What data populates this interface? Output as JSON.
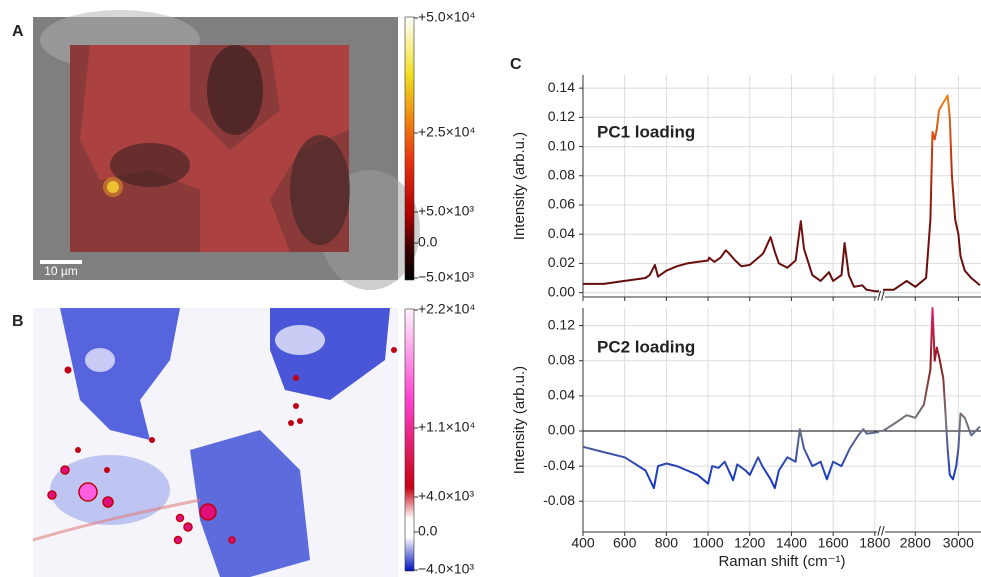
{
  "panel_a": {
    "label": "A",
    "scale_bar": "10 µm",
    "colorbar_ticks": [
      "+5.0×10⁴",
      "+2.5×10⁴",
      "+5.0×10³",
      "0.0",
      "−5.0×10³"
    ]
  },
  "panel_b": {
    "label": "B",
    "colorbar_ticks": [
      "+2.2×10⁴",
      "+1.1×10⁴",
      "+4.0×10³",
      "0.0",
      "−4.0×10³"
    ]
  },
  "panel_c": {
    "label": "C",
    "x_label": "Raman shift (cm⁻¹)"
  },
  "chart_data": [
    {
      "type": "line",
      "annotation": "PC1 loading",
      "y_label": "Intensity (arb.u.)",
      "colors": [
        "#5c0a0a",
        "#7a1010",
        "#d03a10",
        "#f5a020"
      ],
      "grid": true,
      "x_segments": [
        [
          400,
          1820
        ],
        [
          2650,
          3105
        ]
      ],
      "x": [
        400,
        500,
        600,
        700,
        720,
        745,
        760,
        800,
        850,
        900,
        950,
        1000,
        1005,
        1030,
        1060,
        1085,
        1100,
        1130,
        1160,
        1200,
        1250,
        1265,
        1300,
        1320,
        1340,
        1380,
        1420,
        1445,
        1460,
        1500,
        1540,
        1580,
        1600,
        1640,
        1655,
        1675,
        1700,
        1740,
        1760,
        1800,
        1820,
        null,
        2650,
        2700,
        2760,
        2800,
        2850,
        2870,
        2880,
        2890,
        2900,
        2910,
        2930,
        2950,
        2960,
        2970,
        2985,
        3000,
        3010,
        3030,
        3060,
        3100
      ],
      "values": [
        0.006,
        0.006,
        0.008,
        0.01,
        0.012,
        0.019,
        0.011,
        0.015,
        0.018,
        0.02,
        0.021,
        0.022,
        0.024,
        0.021,
        0.024,
        0.029,
        0.027,
        0.022,
        0.018,
        0.019,
        0.025,
        0.027,
        0.038,
        0.028,
        0.02,
        0.017,
        0.022,
        0.049,
        0.03,
        0.012,
        0.008,
        0.014,
        0.008,
        0.012,
        0.034,
        0.012,
        0.004,
        0.005,
        0.002,
        0.001,
        0.001,
        null,
        0.002,
        0.002,
        0.008,
        0.004,
        0.01,
        0.05,
        0.11,
        0.105,
        0.112,
        0.125,
        0.13,
        0.135,
        0.12,
        0.08,
        0.05,
        0.04,
        0.025,
        0.015,
        0.01,
        0.005
      ],
      "ylim": [
        -0.003,
        0.149
      ],
      "yticks": [
        {
          "value": 0,
          "label": "0.00"
        },
        {
          "value": 0.02,
          "label": "0.02"
        },
        {
          "value": 0.04,
          "label": "0.04"
        },
        {
          "value": 0.06,
          "label": "0.06"
        },
        {
          "value": 0.08,
          "label": "0.08"
        },
        {
          "value": 0.1,
          "label": "0.10"
        },
        {
          "value": 0.12,
          "label": "0.12"
        },
        {
          "value": 0.14,
          "label": "0.14"
        }
      ],
      "xticks": [
        400,
        600,
        800,
        1000,
        1200,
        1400,
        1600,
        1800,
        2800,
        3000
      ]
    },
    {
      "type": "line",
      "annotation": "PC2 loading",
      "y_label": "Intensity (arb.u.)",
      "colors": [
        "#1020a0",
        "#1a3ac0",
        "#777777",
        "#8b1a1a",
        "#e0206a"
      ],
      "grid": true,
      "x_segments": [
        [
          400,
          1820
        ],
        [
          2650,
          3105
        ]
      ],
      "x": [
        400,
        500,
        600,
        700,
        740,
        760,
        800,
        850,
        900,
        950,
        1000,
        1020,
        1050,
        1080,
        1120,
        1140,
        1180,
        1200,
        1240,
        1260,
        1300,
        1320,
        1340,
        1380,
        1420,
        1440,
        1460,
        1500,
        1540,
        1570,
        1600,
        1640,
        1660,
        1680,
        1720,
        1745,
        1760,
        1800,
        1820,
        null,
        2650,
        2700,
        2760,
        2800,
        2840,
        2870,
        2880,
        2890,
        2900,
        2910,
        2930,
        2940,
        2950,
        2960,
        2975,
        2990,
        3000,
        3010,
        3030,
        3060,
        3100
      ],
      "values": [
        -0.018,
        -0.024,
        -0.03,
        -0.045,
        -0.065,
        -0.04,
        -0.037,
        -0.04,
        -0.045,
        -0.05,
        -0.06,
        -0.04,
        -0.042,
        -0.035,
        -0.056,
        -0.038,
        -0.045,
        -0.05,
        -0.03,
        -0.04,
        -0.055,
        -0.065,
        -0.045,
        -0.03,
        -0.035,
        0.002,
        -0.02,
        -0.04,
        -0.035,
        -0.055,
        -0.035,
        -0.04,
        -0.03,
        -0.02,
        -0.005,
        0.002,
        -0.003,
        -0.002,
        -0.001,
        null,
        0,
        0.008,
        0.018,
        0.015,
        0.03,
        0.07,
        0.14,
        0.08,
        0.095,
        0.085,
        0.06,
        0.02,
        -0.02,
        -0.05,
        -0.055,
        -0.04,
        -0.02,
        0.02,
        0.015,
        -0.005,
        0.005
      ],
      "ylim": [
        -0.115,
        0.14
      ],
      "yticks": [
        {
          "value": -0.08,
          "label": "-0.08"
        },
        {
          "value": -0.04,
          "label": "-0.04"
        },
        {
          "value": 0,
          "label": "0.00"
        },
        {
          "value": 0.04,
          "label": "0.04"
        },
        {
          "value": 0.08,
          "label": "0.08"
        },
        {
          "value": 0.12,
          "label": "0.12"
        }
      ],
      "xticks": [
        400,
        600,
        800,
        1000,
        1200,
        1400,
        1600,
        1800,
        2800,
        3000
      ]
    }
  ]
}
